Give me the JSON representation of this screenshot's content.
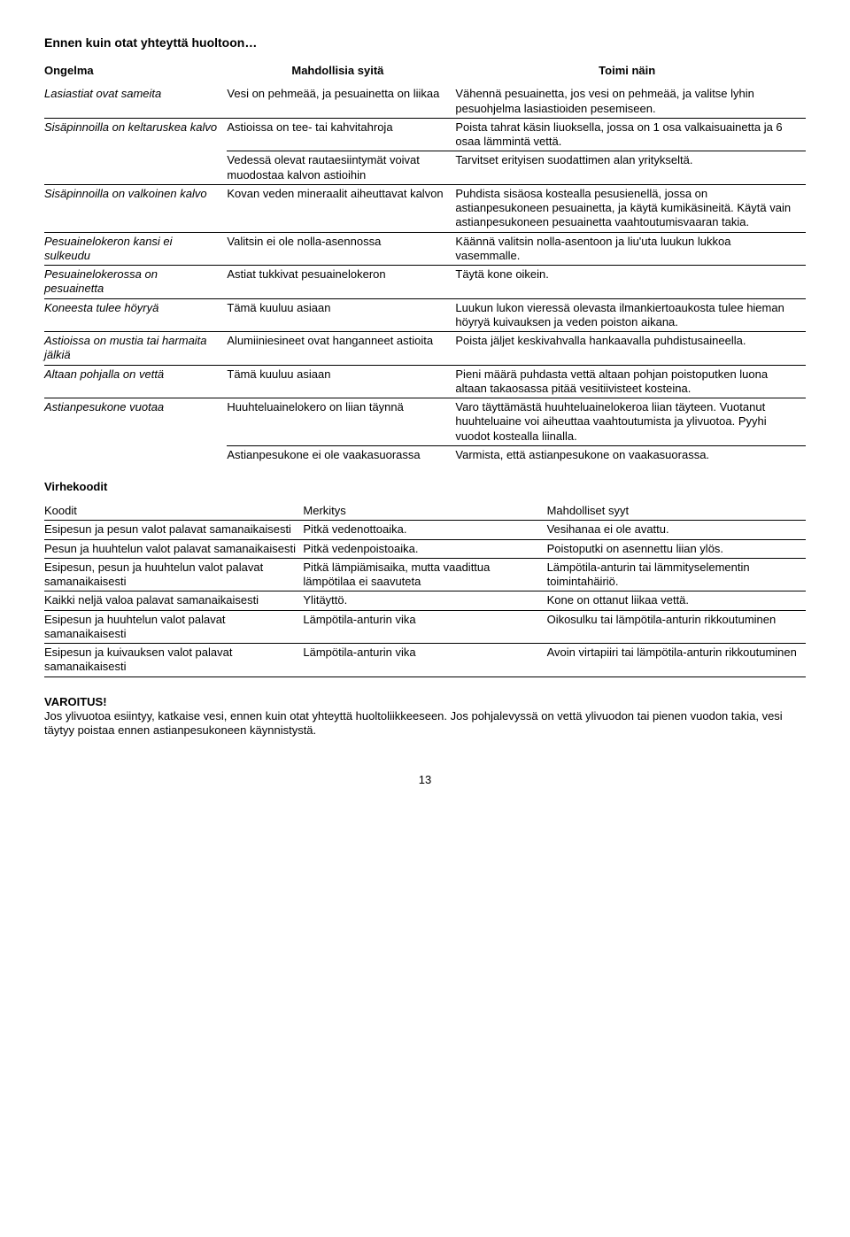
{
  "title": "Ennen kuin otat yhteyttä huoltoon…",
  "table1": {
    "headers": {
      "c1": "Ongelma",
      "c2": "Mahdollisia syitä",
      "c3": "Toimi näin"
    },
    "rows": [
      {
        "c1": "Lasiastiat ovat sameita",
        "c2": "Vesi on pehmeää, ja pesuainetta on liikaa",
        "c3": "Vähennä pesuainetta, jos vesi on pehmeää, ja valitse lyhin pesuohjelma lasiastioiden pesemiseen.",
        "sepBottom": true
      },
      {
        "c1": "Sisäpinnoilla on keltaruskea kalvo",
        "c2": "Astioissa on tee- tai kahvitahroja",
        "c3": "Poista tahrat käsin liuoksella, jossa on 1 osa valkaisuainetta ja 6 osaa lämmintä vettä.",
        "sepMid": true
      },
      {
        "c1": "",
        "c2": "Vedessä olevat rautaesiintymät voivat muodostaa kalvon astioihin",
        "c3": "Tarvitset erityisen suodattimen alan yritykseltä.",
        "sepBottom": true
      },
      {
        "c1": "Sisäpinnoilla on valkoinen kalvo",
        "c2": "Kovan veden mineraalit aiheuttavat kalvon",
        "c3": "Puhdista sisäosa kostealla pesusienellä, jossa on astianpesukoneen pesuainetta, ja käytä kumikäsineitä. Käytä vain astianpesukoneen pesuainetta vaahtoutumisvaaran takia.",
        "sepBottom": true
      },
      {
        "c1": "Pesuainelokeron kansi ei sulkeudu",
        "c2": "Valitsin ei ole nolla-asennossa",
        "c3": "Käännä valitsin nolla-asentoon ja liu'uta luukun lukkoa vasemmalle.",
        "sepBottom": true
      },
      {
        "c1": "Pesuainelokerossa on pesuainetta",
        "c2": "Astiat tukkivat pesuainelokeron",
        "c3": "Täytä kone oikein.",
        "sepBottom": true
      },
      {
        "c1": "Koneesta tulee höyryä",
        "c2": "Tämä kuuluu asiaan",
        "c3": "Luukun lukon vieressä olevasta ilmankiertoaukosta tulee hieman höyryä kuivauksen ja veden poiston aikana.",
        "sepBottom": true
      },
      {
        "c1": "Astioissa on mustia tai harmaita jälkiä",
        "c2": "Alumiiniesineet ovat hanganneet astioita",
        "c3": "Poista jäljet keskivahvalla hankaavalla puhdistusaineella.",
        "sepBottom": true
      },
      {
        "c1": "Altaan pohjalla on vettä",
        "c2": "Tämä kuuluu asiaan",
        "c3": "Pieni määrä puhdasta vettä altaan pohjan poistoputken luona altaan takaosassa pitää vesitiivisteet kosteina.",
        "sepBottom": true
      },
      {
        "c1": "Astianpesukone vuotaa",
        "c2": "Huuhteluainelokero on liian täynnä",
        "c3": "Varo täyttämästä huuhteluainelokeroa liian täyteen. Vuotanut huuhteluaine voi aiheuttaa vaahtoutumista ja ylivuotoa. Pyyhi vuodot kostealla liinalla.",
        "sepMid": true
      },
      {
        "c1": "",
        "c2": "Astianpesukone ei ole vaakasuorassa",
        "c3": "Varmista, että astianpesukone on vaakasuorassa.",
        "sepBottom": false
      }
    ]
  },
  "section2": "Virhekoodit",
  "table2": {
    "headers": {
      "c1": "Koodit",
      "c2": "Merkitys",
      "c3": "Mahdolliset syyt"
    },
    "rows": [
      {
        "c1": "Esipesun ja pesun valot palavat samanaikaisesti",
        "c2": "Pitkä vedenottoaika.",
        "c3": "Vesihanaa ei ole avattu."
      },
      {
        "c1": "Pesun ja huuhtelun valot palavat samanaikaisesti",
        "c2": "Pitkä vedenpoistoaika.",
        "c3": "Poistoputki on asennettu liian ylös."
      },
      {
        "c1": "Esipesun, pesun ja huuhtelun valot palavat samanaikaisesti",
        "c2": "Pitkä lämpiämisaika, mutta vaadittua lämpötilaa ei saavuteta",
        "c3": "Lämpötila-anturin tai lämmityselementin toimintahäiriö."
      },
      {
        "c1": "Kaikki neljä valoa palavat samanaikaisesti",
        "c2": "Ylitäyttö.",
        "c3": "Kone on ottanut liikaa vettä."
      },
      {
        "c1": "Esipesun ja huuhtelun valot palavat samanaikaisesti",
        "c2": "Lämpötila-anturin vika",
        "c3": "Oikosulku tai lämpötila-anturin rikkoutuminen"
      },
      {
        "c1": "Esipesun ja kuivauksen valot palavat samanaikaisesti",
        "c2": "Lämpötila-anturin vika",
        "c3": "Avoin virtapiiri tai lämpötila-anturin rikkoutuminen"
      }
    ]
  },
  "warning": {
    "label": "VAROITUS!",
    "text": "Jos ylivuotoa esiintyy, katkaise vesi, ennen kuin otat yhteyttä huoltoliikkeeseen. Jos pohjalevyssä on vettä ylivuodon tai pienen vuodon takia, vesi täytyy poistaa ennen astianpesukoneen käynnistystä."
  },
  "pageNumber": "13"
}
